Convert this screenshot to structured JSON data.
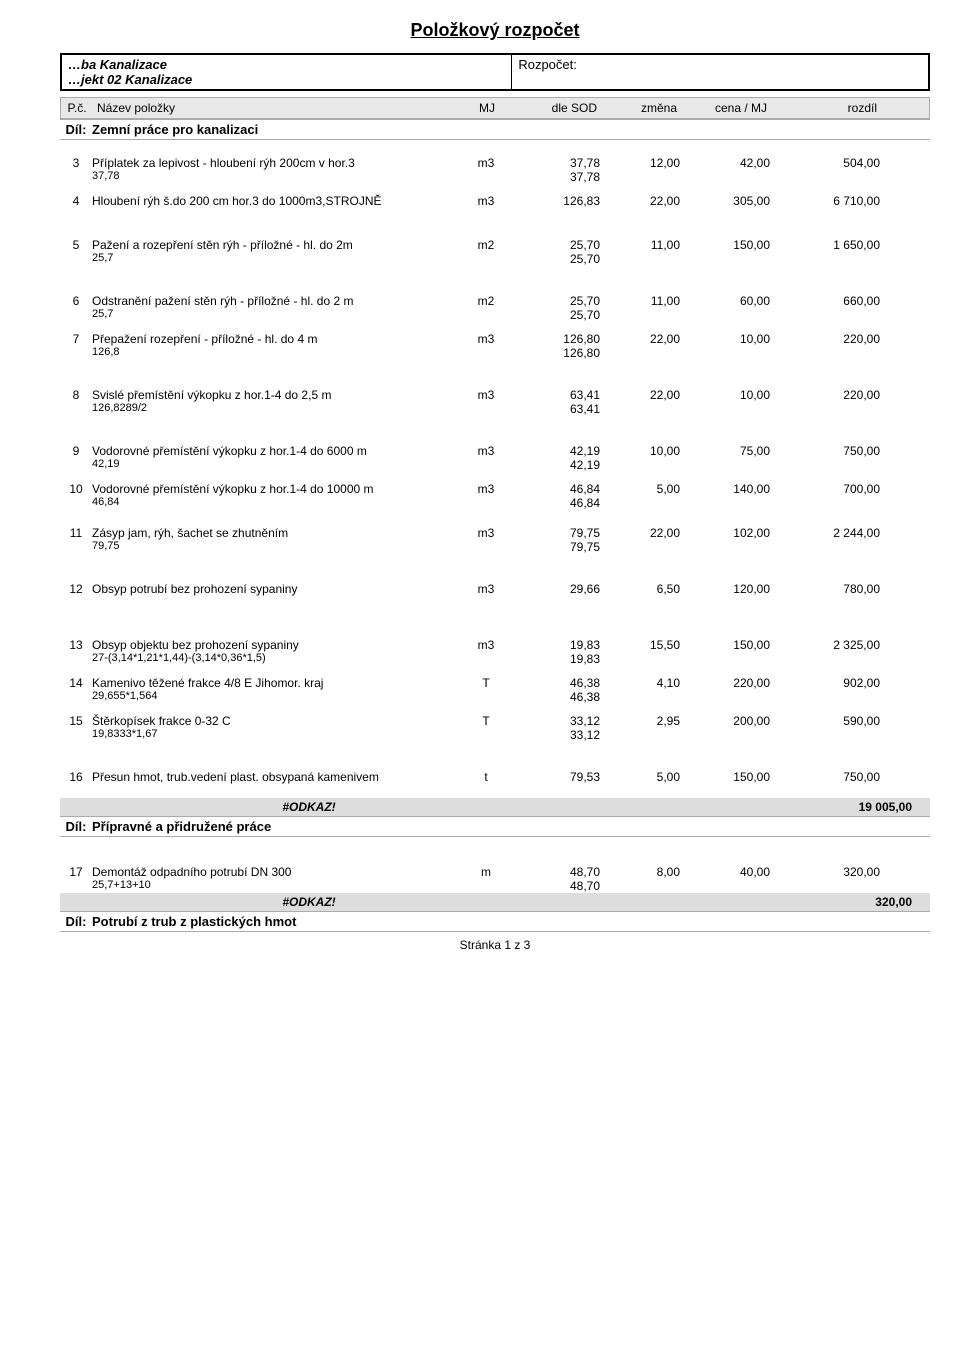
{
  "title": "Položkový rozpočet",
  "header": {
    "left_line1": "…ba Kanalizace",
    "left_line2": "…jekt 02 Kanalizace",
    "right_label": "Rozpočet:"
  },
  "columns": {
    "num": "P.č.",
    "name": "Název položky",
    "mj": "MJ",
    "sod": "dle SOD",
    "zmena": "změna",
    "cena": "cena / MJ",
    "rozdil": "rozdíl"
  },
  "sections": [
    {
      "num": "Díl:",
      "name": "Zemní práce pro kanalizaci"
    },
    {
      "num": "Díl:",
      "name": "Přípravné a přidružené práce",
      "subtotal": "19 005,00",
      "odkaz": "#ODKAZ!"
    },
    {
      "num": "Díl:",
      "name": "Potrubí z trub z plastických hmot",
      "subtotal": "320,00",
      "odkaz": "#ODKAZ!"
    }
  ],
  "items": [
    {
      "n": "3",
      "name": "Příplatek za lepivost - hloubení rýh 200cm v hor.3",
      "sub": "37,78",
      "mj": "m3",
      "sod": "37,78",
      "sod2": "37,78",
      "zm": "12,00",
      "cena": "42,00",
      "roz": "504,00",
      "gap": "md"
    },
    {
      "n": "4",
      "name": "Hloubení rýh š.do 200 cm hor.3 do 1000m3,STROJNĚ",
      "mj": "m3",
      "sod": "126,83",
      "zm": "22,00",
      "cena": "305,00",
      "roz": "6 710,00"
    },
    {
      "n": "5",
      "name": "Pažení a rozepření stěn rýh - příložné - hl. do 2m",
      "sub": "25,7",
      "mj": "m2",
      "sod": "25,70",
      "sod2": "25,70",
      "zm": "11,00",
      "cena": "150,00",
      "roz": "1 650,00",
      "gap": "md"
    },
    {
      "n": "6",
      "name": "Odstranění pažení stěn rýh - příložné - hl. do 2 m",
      "sub": "25,7",
      "mj": "m2",
      "sod": "25,70",
      "sod2": "25,70",
      "zm": "11,00",
      "cena": "60,00",
      "roz": "660,00",
      "gap": "lg"
    },
    {
      "n": "7",
      "name": "Přepažení rozepření - příložné - hl. do 4 m",
      "sub": "126,8",
      "mj": "m3",
      "sod": "126,80",
      "sod2": "126,80",
      "zm": "22,00",
      "cena": "10,00",
      "roz": "220,00"
    },
    {
      "n": "8",
      "name": "Svislé přemístění výkopku z hor.1-4 do 2,5 m",
      "sub": "126,8289/2",
      "mj": "m3",
      "sod": "63,41",
      "sod2": "63,41",
      "zm": "22,00",
      "cena": "10,00",
      "roz": "220,00",
      "gap": "lg"
    },
    {
      "n": "9",
      "name": "Vodorovné přemístění výkopku z hor.1-4 do 6000 m",
      "sub": "42,19",
      "mj": "m3",
      "sod": "42,19",
      "sod2": "42,19",
      "zm": "10,00",
      "cena": "75,00",
      "roz": "750,00",
      "gap": "lg"
    },
    {
      "n": "10",
      "name": "Vodorovné přemístění výkopku z hor.1-4 do 10000 m",
      "sub": "46,84",
      "mj": "m3",
      "sod": "46,84",
      "sod2": "46,84",
      "zm": "5,00",
      "cena": "140,00",
      "roz": "700,00"
    },
    {
      "n": "11",
      "name": "Zásyp jam, rýh, šachet se zhutněním",
      "sub": "79,75",
      "mj": "m3",
      "sod": "79,75",
      "sod2": "79,75",
      "zm": "22,00",
      "cena": "102,00",
      "roz": "2 244,00",
      "gap": "md"
    },
    {
      "n": "12",
      "name": "Obsyp potrubí bez prohození sypaniny",
      "mj": "m3",
      "sod": "29,66",
      "zm": "6,50",
      "cena": "120,00",
      "roz": "780,00",
      "gap": "lg"
    },
    {
      "n": "13",
      "name": "Obsyp objektu bez prohození sypaniny",
      "sub": "27-(3,14*1,21*1,44)-(3,14*0,36*1,5)",
      "mj": "m3",
      "sod": "19,83",
      "sod2": "19,83",
      "zm": "15,50",
      "cena": "150,00",
      "roz": "2 325,00",
      "gap": "lg"
    },
    {
      "n": "14",
      "name": "Kamenivo těžené frakce 4/8 E Jihomor. kraj",
      "sub": "29,655*1,564",
      "mj": "T",
      "sod": "46,38",
      "sod2": "46,38",
      "zm": "4,10",
      "cena": "220,00",
      "roz": "902,00"
    },
    {
      "n": "15",
      "name": "Štěrkopísek frakce 0-32 C",
      "sub": "19,8333*1,67",
      "mj": "T",
      "sod": "33,12",
      "sod2": "33,12",
      "zm": "2,95",
      "cena": "200,00",
      "roz": "590,00"
    },
    {
      "n": "16",
      "name": "Přesun hmot, trub.vedení plast. obsypaná kamenivem",
      "mj": "t",
      "sod": "79,53",
      "zm": "5,00",
      "cena": "150,00",
      "roz": "750,00",
      "gap": "lg"
    },
    {
      "n": "17",
      "name": "Demontáž odpadního potrubí DN 300",
      "sub": "25,7+13+10",
      "mj": "m",
      "sod": "48,70",
      "sod2": "48,70",
      "zm": "8,00",
      "cena": "40,00",
      "roz": "320,00",
      "gap": "lg"
    }
  ],
  "footer_page": "Stránka 1 z 3"
}
